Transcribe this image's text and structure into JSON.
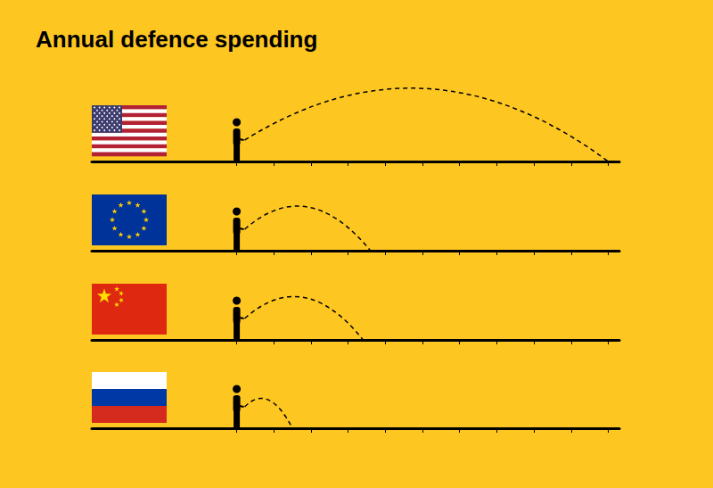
{
  "chart_data": {
    "type": "arc",
    "title": "Annual defence spending",
    "categories": [
      null,
      null,
      null,
      null
    ],
    "values": [
      10,
      3.6,
      3.4,
      1.5
    ],
    "color": "#000000",
    "xlim": [
      -3.9,
      10.3
    ],
    "xticks": [
      0,
      1,
      2,
      3,
      4,
      5,
      6,
      7,
      8,
      9,
      10
    ],
    "tick_labels": false,
    "grid": false
  }
}
